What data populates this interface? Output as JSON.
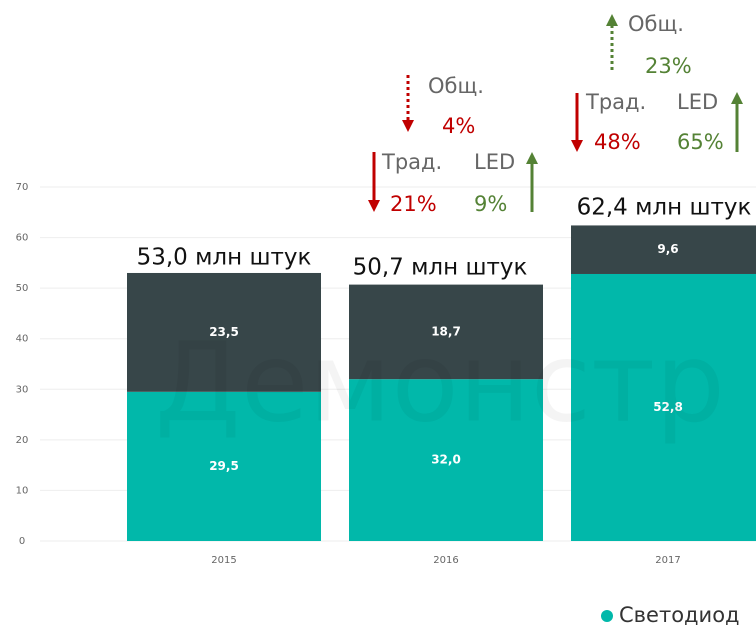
{
  "chart_data": {
    "type": "stacked_bar",
    "categories": [
      "2015",
      "2016",
      "2017"
    ],
    "series": [
      {
        "name": "Светодиод",
        "color": "#01b8aa",
        "values": [
          29.5,
          32.0,
          52.8
        ],
        "value_labels": [
          "29,5",
          "32,0",
          "52,8"
        ]
      },
      {
        "color": "#374649",
        "values": [
          23.5,
          18.7,
          9.6
        ],
        "value_labels": [
          "23,5",
          "18,7",
          "9,6"
        ]
      }
    ],
    "ylim": [
      0,
      70
    ],
    "yticks": [
      0,
      10,
      20,
      30,
      40,
      50,
      60,
      70
    ],
    "grid": true,
    "watermark": "Демонстр",
    "annotations": {
      "totals": [
        "53,0 млн штук",
        "50,7 млн штук",
        "62,4 млн штук"
      ],
      "changes": [
        {
          "total": "Общ.",
          "total_pct": "4%",
          "trad": "Трад.",
          "trad_pct": "21%",
          "led": "LED",
          "led_pct": "9%"
        },
        {
          "total": "Общ.",
          "total_pct": "23%",
          "trad": "Трад.",
          "trad_pct": "48%",
          "led": "LED",
          "led_pct": "65%"
        }
      ]
    }
  }
}
